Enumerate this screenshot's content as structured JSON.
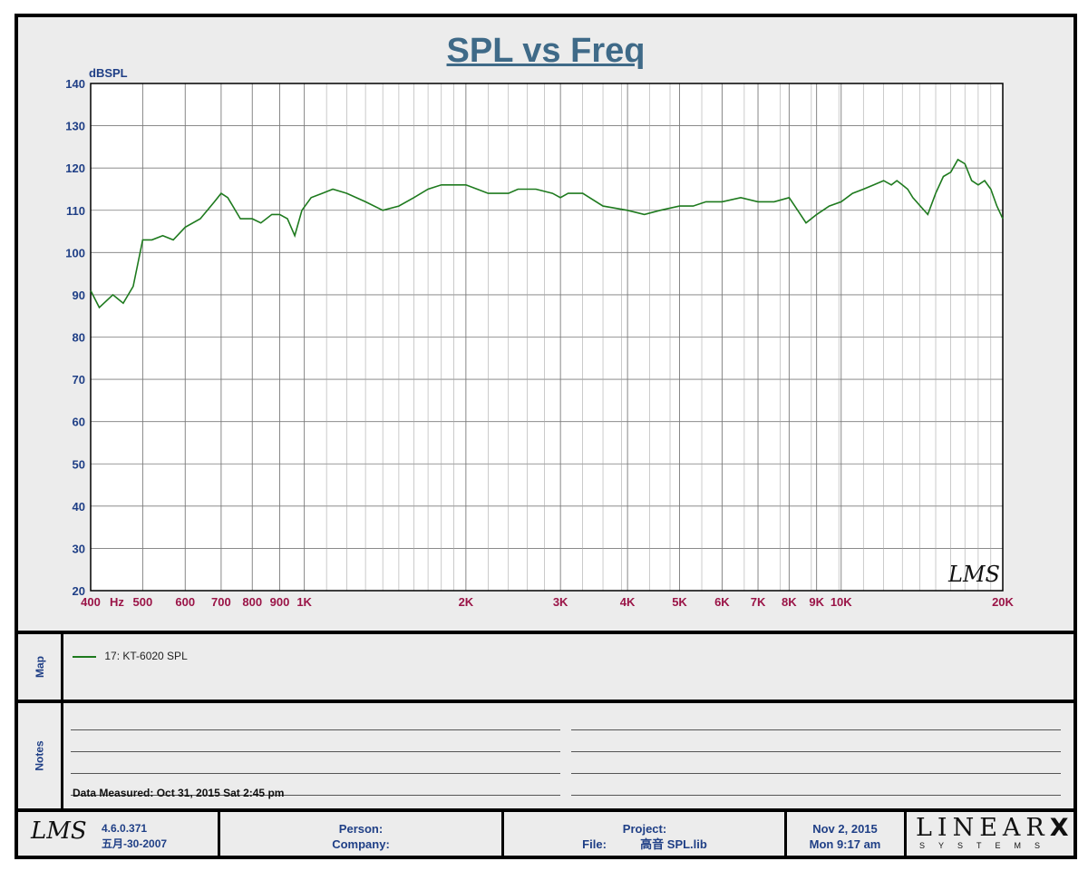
{
  "chart_data": {
    "type": "line",
    "title": "SPL vs Freq",
    "ylabel": "dBSPL",
    "xlabel": "Hz",
    "x_scale": "log",
    "xlim": [
      400,
      20000
    ],
    "ylim": [
      20,
      140
    ],
    "y_ticks": [
      "20",
      "30",
      "40",
      "50",
      "60",
      "70",
      "80",
      "90",
      "100",
      "110",
      "120",
      "130",
      "140"
    ],
    "x_ticks": [
      {
        "v": 400,
        "label": "400"
      },
      {
        "v": 500,
        "label": "500"
      },
      {
        "v": 600,
        "label": "600"
      },
      {
        "v": 700,
        "label": "700"
      },
      {
        "v": 800,
        "label": "800"
      },
      {
        "v": 900,
        "label": "900"
      },
      {
        "v": 1000,
        "label": "1K"
      },
      {
        "v": 2000,
        "label": "2K"
      },
      {
        "v": 3000,
        "label": "3K"
      },
      {
        "v": 4000,
        "label": "4K"
      },
      {
        "v": 5000,
        "label": "5K"
      },
      {
        "v": 6000,
        "label": "6K"
      },
      {
        "v": 7000,
        "label": "7K"
      },
      {
        "v": 8000,
        "label": "8K"
      },
      {
        "v": 9000,
        "label": "9K"
      },
      {
        "v": 10000,
        "label": "10K"
      },
      {
        "v": 20000,
        "label": "20K"
      }
    ],
    "grid": true,
    "legend_position": "bottom-panel",
    "series": [
      {
        "name": "17: KT-6020   SPL",
        "color": "#1e7a1e",
        "x": [
          400,
          415,
          440,
          460,
          480,
          500,
          520,
          545,
          570,
          600,
          640,
          680,
          700,
          720,
          760,
          800,
          830,
          870,
          900,
          930,
          960,
          990,
          1030,
          1080,
          1130,
          1200,
          1300,
          1400,
          1500,
          1600,
          1700,
          1800,
          1900,
          2000,
          2100,
          2200,
          2300,
          2400,
          2500,
          2700,
          2900,
          3000,
          3100,
          3300,
          3600,
          4000,
          4300,
          4600,
          5000,
          5300,
          5600,
          6000,
          6500,
          7000,
          7500,
          8000,
          8300,
          8600,
          9000,
          9500,
          10000,
          10500,
          11000,
          11500,
          12000,
          12400,
          12700,
          13000,
          13300,
          13600,
          14500,
          15000,
          15500,
          16000,
          16500,
          17000,
          17500,
          18000,
          18500,
          19000,
          19500,
          20000
        ],
        "y": [
          91,
          87,
          90,
          88,
          92,
          103,
          103,
          104,
          103,
          106,
          108,
          112,
          114,
          113,
          108,
          108,
          107,
          109,
          109,
          108,
          104,
          110,
          113,
          114,
          115,
          114,
          112,
          110,
          111,
          113,
          115,
          116,
          116,
          116,
          115,
          114,
          114,
          114,
          115,
          115,
          114,
          113,
          114,
          114,
          111,
          110,
          109,
          110,
          111,
          111,
          112,
          112,
          113,
          112,
          112,
          113,
          110,
          107,
          109,
          111,
          112,
          114,
          115,
          116,
          117,
          116,
          117,
          116,
          115,
          113,
          109,
          114,
          118,
          119,
          122,
          121,
          117,
          116,
          117,
          115,
          111,
          108
        ]
      }
    ]
  },
  "map": {
    "label": "Map",
    "legend_text": "17: KT-6020   SPL"
  },
  "notes": {
    "label": "Notes",
    "measured": "Data Measured: Oct 31, 2015  Sat  2:45 pm"
  },
  "footer": {
    "logo": "LMS",
    "version": "4.6.0.371",
    "build_date": "五月-30-2007",
    "person_label": "Person:",
    "company_label": "Company:",
    "project_label": "Project:",
    "file_label": "File:",
    "file_name": "高音 SPL.lib",
    "date": "Nov  2, 2015",
    "time": "Mon  9:17 am",
    "brand_top": "LINEAR",
    "brand_x": "X",
    "brand_bottom": "SYSTEMS"
  },
  "watermark": "LMS",
  "colors": {
    "title": "#3f6a88",
    "y_ticks": "#1f3f86",
    "x_ticks": "#9a1447",
    "trace": "#1e7a1e"
  }
}
